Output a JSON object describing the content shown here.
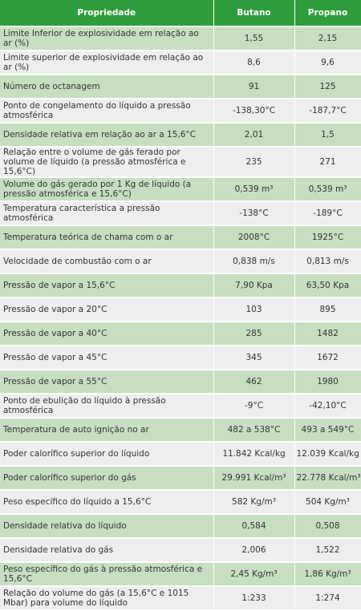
{
  "headers": [
    "Propriedade",
    "Butano",
    "Propano"
  ],
  "rows": [
    {
      "prop": "Limite Inferior de explosividade em relação ao ar (%)",
      "butano": "1,55",
      "propano": "2,15"
    },
    {
      "prop": "Limite superior de explosividade em relação ao ar (%)",
      "butano": "8,6",
      "propano": "9,6"
    },
    {
      "prop": "Número de octanagem",
      "butano": "91",
      "propano": "125"
    },
    {
      "prop": "Ponto de congelamento do líquido a pressão atmosférica",
      "butano": "-138,30°C",
      "propano": "-187,7°C"
    },
    {
      "prop": "Densidade relativa em relação ao ar a 15,6°C",
      "butano": "2,01",
      "propano": "1,5"
    },
    {
      "prop": "Relação entre o volume de gás ferado por volume de líquido (a pressão atmosférica e 15,6°C)",
      "butano": "235",
      "propano": "271"
    },
    {
      "prop": "Volume do gás gerado por 1 Kg de líquido (a pressão atmosférica e 15,6°C)",
      "butano": "0,539 m³",
      "propano": "0,539 m³"
    },
    {
      "prop": "Temperatura característica a pressão atmosférica",
      "butano": "-138°C",
      "propano": "-189°C"
    },
    {
      "prop": "Temperatura teórica de chama com o ar",
      "butano": "2008°C",
      "propano": "1925°C"
    },
    {
      "prop": "Velocidade de combustão com o ar",
      "butano": "0,838 m/s",
      "propano": "0,813 m/s"
    },
    {
      "prop": "Pressão de vapor a 15,6°C",
      "butano": "7,90 Kpa",
      "propano": "63,50 Kpa"
    },
    {
      "prop": "Pressão de vapor a 20°C",
      "butano": "103",
      "propano": "895"
    },
    {
      "prop": "Pressão de vapor a 40°C",
      "butano": "285",
      "propano": "1482"
    },
    {
      "prop": "Pressão de vapor a 45°C",
      "butano": "345",
      "propano": "1672"
    },
    {
      "prop": "Pressão de vapor a 55°C",
      "butano": "462",
      "propano": "1980"
    },
    {
      "prop": "Ponto de ebulição do líquido à pressão atmosférica",
      "butano": "-9°C",
      "propano": "-42,10°C"
    },
    {
      "prop": "Temperatura de auto ignição no ar",
      "butano": "482 a 538°C",
      "propano": "493 a 549°C"
    },
    {
      "prop": "Poder calorífico superior do líquido",
      "butano": "11.842 Kcal/kg",
      "propano": "12.039 Kcal/kg"
    },
    {
      "prop": "Poder calorífico superior do gás",
      "butano": "29.991 Kcal/m³",
      "propano": "22.778 Kcal/m³"
    },
    {
      "prop": "Peso específico do líquido a 15,6°C",
      "butano": "582 Kg/m³",
      "propano": "504 Kg/m³"
    },
    {
      "prop": "Densidade relativa do líquido",
      "butano": "0,584",
      "propano": "0,508"
    },
    {
      "prop": "Densidade relativa do gás",
      "butano": "2,006",
      "propano": "1,522"
    },
    {
      "prop": "Peso específico do gás à pressão atmosférica e 15,6°C",
      "butano": "2,45 Kg/m³",
      "propano": "1,86 Kg/m³"
    },
    {
      "prop": "Relação do volume do gás (a 15,6°C e 1015 Mbar) para volume do líquido",
      "butano": "1:233",
      "propano": "1:274"
    }
  ]
}
